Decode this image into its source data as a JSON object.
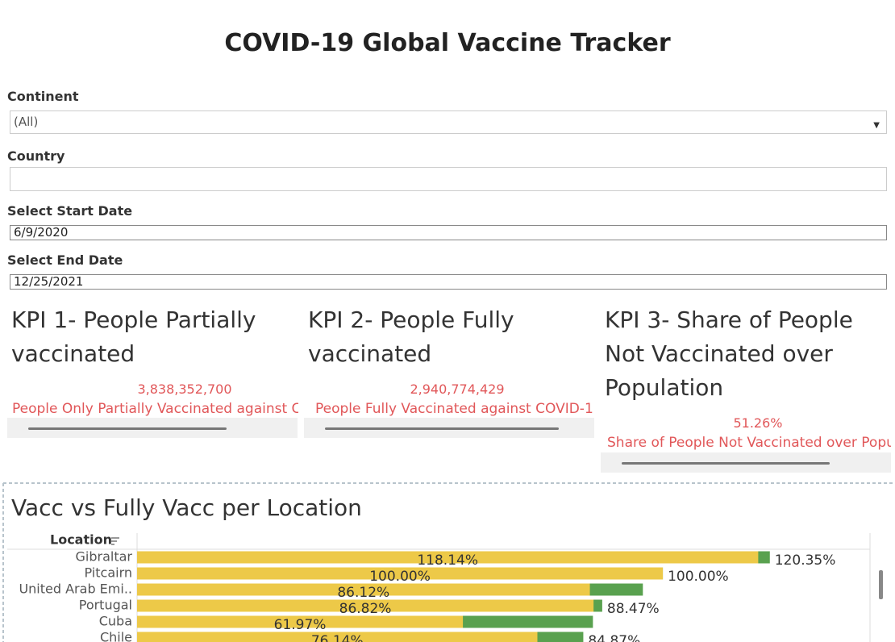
{
  "header": {
    "title": "COVID-19 Global Vaccine Tracker"
  },
  "filters": [
    {
      "label": "Continent",
      "value": "(All)"
    },
    {
      "label": "Country"
    },
    {
      "label": "Select Start Date",
      "value": "6/9/2020"
    },
    {
      "label": "Select End Date",
      "value": "12/25/2021"
    }
  ],
  "kpis": [
    {
      "title": "KPI 1- People Partially vaccinated",
      "value": "3,838,352,700",
      "description": "People Only Partially Vaccinated against C"
    },
    {
      "title": "KPI 2- People Fully vaccinated",
      "value": "2,940,774,429",
      "description": "People Fully Vaccinated against COVID-1"
    },
    {
      "title": "KPI 3- Share of People Not Vaccinated over Population",
      "value": "51.26%",
      "description": "Share of People Not Vaccinated over Popu"
    }
  ],
  "chart_data": {
    "type": "bar",
    "orientation": "horizontal",
    "title": "Vacc vs Fully Vacc per Location",
    "y_label": "Location",
    "categories": [
      "Gibraltar",
      "Pitcairn",
      "United Arab Emi..",
      "Portugal",
      "Cuba",
      "Chile"
    ],
    "series": [
      {
        "color": "#59a14f",
        "values": [
          120.35,
          100,
          96.2,
          88.47,
          86.7,
          84.87
        ],
        "value_labels": [
          "120.35%",
          "100.00%",
          null,
          "88.47%",
          null,
          "84.87%"
        ],
        "label_position": "end"
      },
      {
        "color": "#edc948",
        "values": [
          118.14,
          100,
          86.12,
          86.82,
          61.97,
          76.14
        ],
        "value_labels": [
          "118.14%",
          "100.00%",
          "86.12%",
          "86.82%",
          "61.97%",
          "76.14%"
        ],
        "label_position": "center"
      }
    ],
    "xlim": [
      0,
      139.4
    ]
  }
}
